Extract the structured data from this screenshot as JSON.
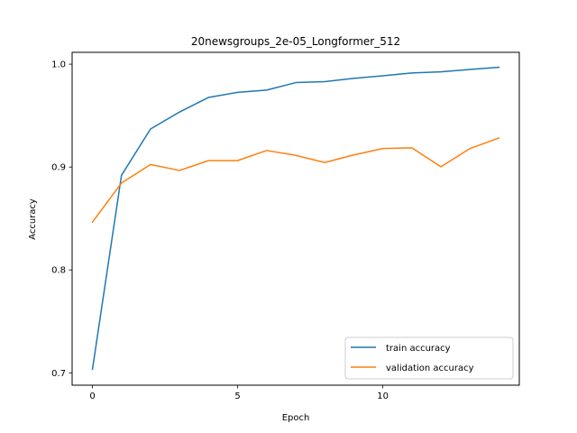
{
  "chart_data": {
    "type": "line",
    "title": "20newsgroups_2e-05_Longformer_512",
    "xlabel": "Epoch",
    "ylabel": "Accuracy",
    "xlim": [
      -0.7,
      14.7
    ],
    "ylim": [
      0.688,
      1.0115
    ],
    "xticks": [
      0,
      5,
      10
    ],
    "xtick_labels": [
      "0",
      "5",
      "10"
    ],
    "yticks": [
      0.7,
      0.8,
      0.9,
      1.0
    ],
    "ytick_labels": [
      "0.7",
      "0.8",
      "0.9",
      "1.0"
    ],
    "grid": false,
    "legend_position": "lower-right",
    "x": [
      0,
      1,
      2,
      3,
      4,
      5,
      6,
      7,
      8,
      9,
      10,
      11,
      12,
      13,
      14
    ],
    "series": [
      {
        "name": "train accuracy",
        "color": "#1f77b4",
        "values": [
          0.7035,
          0.892,
          0.937,
          0.9535,
          0.9677,
          0.9726,
          0.9748,
          0.9821,
          0.983,
          0.9862,
          0.9887,
          0.9914,
          0.9925,
          0.9948,
          0.997
        ]
      },
      {
        "name": "validation accuracy",
        "color": "#ff7f0e",
        "values": [
          0.8465,
          0.8845,
          0.9025,
          0.8967,
          0.9063,
          0.9063,
          0.9161,
          0.9113,
          0.9044,
          0.9118,
          0.918,
          0.9187,
          0.9003,
          0.918,
          0.9283
        ]
      }
    ]
  }
}
